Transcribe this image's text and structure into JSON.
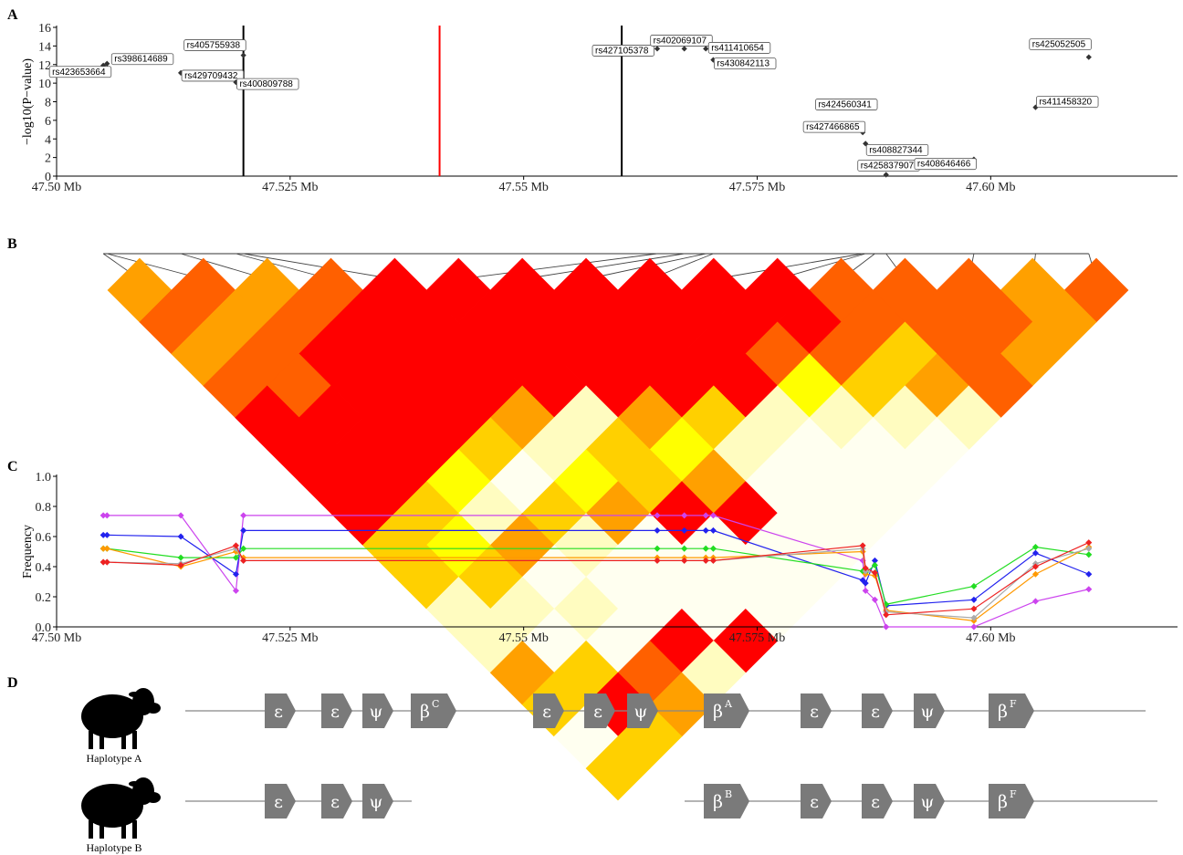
{
  "panels": {
    "a": "A",
    "b": "B",
    "c": "C",
    "d": "D"
  },
  "chart_data": [
    {
      "type": "scatter",
      "panel": "A",
      "ylabel": "−log10(P−value)",
      "xlim": [
        47.5,
        47.62
      ],
      "ylim": [
        0,
        16
      ],
      "xticks": [
        47.5,
        47.525,
        47.55,
        47.575,
        47.6
      ],
      "xtick_labels": [
        "47.50 Mb",
        "47.525 Mb",
        "47.55 Mb",
        "47.575 Mb",
        "47.60 Mb"
      ],
      "yticks": [
        0,
        2,
        4,
        6,
        8,
        10,
        12,
        14,
        16
      ],
      "vlines": [
        {
          "x": 47.52,
          "color": "#000000"
        },
        {
          "x": 47.541,
          "color": "#ff0000"
        },
        {
          "x": 47.5605,
          "color": "#000000"
        }
      ],
      "points": [
        {
          "snp": "rs423653664",
          "x": 47.505,
          "y": 11.9
        },
        {
          "snp": "rs398614689",
          "x": 47.5054,
          "y": 12.1
        },
        {
          "snp": "rs429709432",
          "x": 47.5133,
          "y": 11.1
        },
        {
          "snp": "rs400809788",
          "x": 47.5192,
          "y": 10.1
        },
        {
          "snp": "rs405755938",
          "x": 47.52,
          "y": 13.0
        },
        {
          "snp": "rs427105378",
          "x": 47.5643,
          "y": 13.7
        },
        {
          "snp": "rs402069107",
          "x": 47.5672,
          "y": 13.7
        },
        {
          "snp": "rs411410654",
          "x": 47.5695,
          "y": 13.7
        },
        {
          "snp": "rs430842113",
          "x": 47.5703,
          "y": 12.5
        },
        {
          "snp": "rs427466865",
          "x": 47.5863,
          "y": 4.7
        },
        {
          "snp": "rs408827344",
          "x": 47.5866,
          "y": 3.5
        },
        {
          "snp": "rs425837907",
          "x": 47.5888,
          "y": 0.15
        },
        {
          "snp": "rs424560341",
          "x": 47.5876,
          "y": 7.7
        },
        {
          "snp": "rs408646466",
          "x": 47.5982,
          "y": 1.8
        },
        {
          "snp": "rs411458320",
          "x": 47.6048,
          "y": 7.4
        },
        {
          "snp": "rs425052505",
          "x": 47.6105,
          "y": 12.8
        }
      ]
    },
    {
      "type": "heatmap",
      "panel": "B",
      "n_snps": 16,
      "colors": [
        "#ff0000",
        "#ff6000",
        "#ffa000",
        "#ffd000",
        "#ffff00",
        "#fffcc0",
        "#fffff0"
      ],
      "matrix": [
        [
          2,
          1,
          2,
          1,
          0,
          0,
          0,
          0,
          0,
          0,
          0,
          1,
          1,
          1,
          2,
          1
        ],
        [
          1,
          2,
          1,
          0,
          0,
          0,
          0,
          0,
          0,
          0,
          0,
          1,
          1,
          1,
          2
        ],
        [
          2,
          1,
          0,
          0,
          0,
          0,
          0,
          0,
          0,
          1,
          1,
          3,
          1,
          2
        ],
        [
          1,
          1,
          0,
          0,
          0,
          0,
          0,
          0,
          0,
          4,
          3,
          2,
          1
        ],
        [
          0,
          0,
          0,
          0,
          2,
          5,
          2,
          3,
          5,
          5,
          5,
          5
        ],
        [
          0,
          0,
          0,
          3,
          5,
          3,
          4,
          5,
          6,
          6,
          6
        ],
        [
          0,
          0,
          4,
          6,
          4,
          3,
          2,
          6,
          6,
          6
        ],
        [
          0,
          3,
          5,
          3,
          2,
          0,
          0,
          6,
          6
        ],
        [
          3,
          4,
          2,
          5,
          6,
          6,
          6,
          6
        ],
        [
          3,
          3,
          6,
          6,
          6,
          6,
          6
        ],
        [
          5,
          5,
          5,
          6,
          6,
          6
        ],
        [
          5,
          6,
          6,
          0,
          0
        ],
        [
          2,
          3,
          1,
          5
        ],
        [
          3,
          0,
          2
        ],
        [
          6,
          3
        ],
        [
          3
        ]
      ]
    },
    {
      "type": "line",
      "panel": "C",
      "ylabel": "Frequency",
      "xlim": [
        47.5,
        47.62
      ],
      "ylim": [
        0,
        1.0
      ],
      "xticks": [
        47.5,
        47.525,
        47.55,
        47.575,
        47.6
      ],
      "xtick_labels": [
        "47.50 Mb",
        "47.525 Mb",
        "47.55 Mb",
        "47.575 Mb",
        "47.60 Mb"
      ],
      "yticks": [
        0,
        0.2,
        0.4,
        0.6,
        0.8,
        1.0
      ],
      "ytick_labels": [
        "0.0",
        "0.2",
        "0.4",
        "0.6",
        "0.8",
        "1.0"
      ],
      "x": [
        47.505,
        47.5054,
        47.5133,
        47.5192,
        47.52,
        47.5643,
        47.5672,
        47.5695,
        47.5703,
        47.5863,
        47.5866,
        47.5876,
        47.5888,
        47.5982,
        47.6048,
        47.6105
      ],
      "series": [
        {
          "color": "#cc44ee",
          "values": [
            0.74,
            0.74,
            0.74,
            0.24,
            0.74,
            0.74,
            0.74,
            0.74,
            0.74,
            0.44,
            0.24,
            0.18,
            0.0,
            0.0,
            0.17,
            0.25
          ]
        },
        {
          "color": "#2222ee",
          "values": [
            0.61,
            0.61,
            0.6,
            0.35,
            0.64,
            0.64,
            0.64,
            0.64,
            0.64,
            0.31,
            0.29,
            0.44,
            0.14,
            0.18,
            0.49,
            0.35
          ]
        },
        {
          "color": "#22dd22",
          "values": [
            0.52,
            0.52,
            0.46,
            0.46,
            0.52,
            0.52,
            0.52,
            0.52,
            0.52,
            0.37,
            0.36,
            0.41,
            0.15,
            0.27,
            0.53,
            0.48
          ]
        },
        {
          "color": "#ff9900",
          "values": [
            0.52,
            0.52,
            0.4,
            0.5,
            0.46,
            0.46,
            0.46,
            0.46,
            0.46,
            0.5,
            0.35,
            0.34,
            0.11,
            0.04,
            0.35,
            0.53
          ]
        },
        {
          "color": "#aaaaaa",
          "values": [
            0.43,
            0.43,
            0.42,
            0.52,
            0.44,
            0.44,
            0.44,
            0.44,
            0.44,
            0.52,
            0.37,
            0.36,
            0.1,
            0.06,
            0.42,
            0.52
          ]
        },
        {
          "color": "#ee2222",
          "values": [
            0.43,
            0.43,
            0.41,
            0.54,
            0.44,
            0.44,
            0.44,
            0.44,
            0.44,
            0.54,
            0.39,
            0.36,
            0.08,
            0.12,
            0.4,
            0.56
          ]
        }
      ]
    }
  ],
  "haplotypes": [
    {
      "label": "Haplotype A",
      "genes": [
        {
          "name": "ε",
          "sup": ""
        },
        {
          "name": "ε",
          "sup": ""
        },
        {
          "name": "ψ",
          "sup": ""
        },
        {
          "name": "β",
          "sup": "C"
        },
        {
          "name": "ε",
          "sup": ""
        },
        {
          "name": "ε",
          "sup": ""
        },
        {
          "name": "ψ",
          "sup": ""
        },
        {
          "name": "β",
          "sup": "A"
        },
        {
          "name": "ε",
          "sup": ""
        },
        {
          "name": "ε",
          "sup": ""
        },
        {
          "name": "ψ",
          "sup": ""
        },
        {
          "name": "β",
          "sup": "F"
        }
      ]
    },
    {
      "label": "Haplotype  B",
      "genes": [
        {
          "name": "ε",
          "sup": ""
        },
        {
          "name": "ε",
          "sup": ""
        },
        {
          "name": "ψ",
          "sup": ""
        },
        {
          "name": "β",
          "sup": "B"
        },
        {
          "name": "ε",
          "sup": ""
        },
        {
          "name": "ε",
          "sup": ""
        },
        {
          "name": "ψ",
          "sup": ""
        },
        {
          "name": "β",
          "sup": "F"
        }
      ]
    }
  ]
}
